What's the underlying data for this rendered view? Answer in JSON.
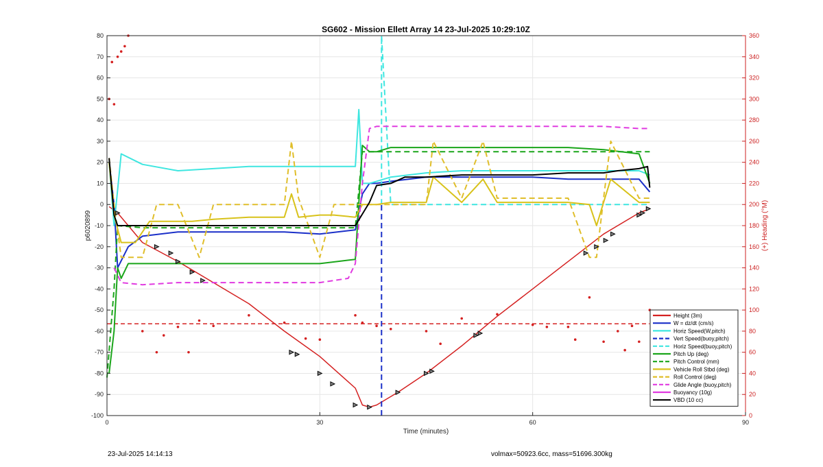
{
  "chart_data": {
    "type": "line",
    "title": "SG602 - Mission Ellett Array 14 23-Jul-2025 10:29:10Z",
    "xlabel": "Time (minutes)",
    "ylabel": "p6020899",
    "y2label": "(+) Heading (°M)",
    "xlim": [
      0,
      90
    ],
    "ylim": [
      -100,
      80
    ],
    "y2lim": [
      0,
      360
    ],
    "x_ticks": [
      "0",
      "30",
      "60",
      "90"
    ],
    "y_ticks": [
      "80",
      "70",
      "60",
      "50",
      "40",
      "30",
      "20",
      "10",
      "0",
      "-10",
      "-20",
      "-30",
      "-40",
      "-50",
      "-60",
      "-70",
      "-80",
      "-90",
      "-100"
    ],
    "y2_ticks": [
      "360",
      "340",
      "320",
      "300",
      "280",
      "260",
      "240",
      "220",
      "200",
      "180",
      "160",
      "140",
      "120",
      "100",
      "80",
      "60",
      "40",
      "20",
      "0"
    ],
    "grid": true,
    "legend_position": "bottom-right",
    "colors": {
      "height": "#d42020",
      "w": "#1a2fc8",
      "horiz": "#3ee6e0",
      "vert_buoy": "#1a2fc8",
      "horiz_buoy": "#3ee6e0",
      "pitch": "#1aa51a",
      "pitch_ctrl": "#1aa51a",
      "roll": "#d8c21a",
      "roll_ctrl": "#e0be2a",
      "glide": "#e03ae0",
      "buoy": "#e03ae0",
      "vbd": "#000000",
      "heading": "#d42020"
    },
    "series": [
      {
        "name": "Height (3m)",
        "style": "solid",
        "color": "#d42020",
        "x": [
          0.3,
          1.5,
          5,
          10,
          15,
          20,
          25,
          30,
          35,
          36,
          37,
          38,
          41,
          45,
          50,
          55,
          60,
          65,
          70,
          75,
          76.5
        ],
        "y": [
          -1,
          -4,
          -18,
          -27,
          -37,
          -47,
          -60,
          -72,
          -87,
          -95,
          -96,
          -95,
          -89,
          -80,
          -67,
          -53,
          -40,
          -27,
          -14,
          -4,
          -2
        ]
      },
      {
        "name": "W = dz/dt (cm/s)",
        "style": "solid",
        "color": "#1a2fc8",
        "x": [
          0.3,
          1,
          1.5,
          3,
          5,
          10,
          15,
          20,
          25,
          30,
          35,
          36,
          37,
          38,
          40,
          45,
          50,
          55,
          60,
          65,
          70,
          75,
          76.5
        ],
        "y": [
          20,
          0,
          -30,
          -20,
          -15,
          -13,
          -13,
          -13,
          -13,
          -14,
          -12,
          5,
          10,
          10,
          11,
          13,
          13,
          13,
          13,
          12,
          12,
          12,
          6
        ]
      },
      {
        "name": "Horiz Speed(W,pitch)",
        "style": "solid",
        "color": "#3ee6e0",
        "x": [
          0.3,
          1,
          2,
          5,
          10,
          15,
          20,
          25,
          30,
          35,
          35.5,
          36,
          37,
          38,
          40,
          45,
          50,
          55,
          60,
          65,
          70,
          75,
          76.5
        ],
        "y": [
          20,
          -10,
          24,
          19,
          16,
          17,
          18,
          18,
          18,
          18,
          45,
          10,
          10,
          11,
          13,
          15,
          16,
          16,
          16,
          16,
          16,
          16,
          14
        ]
      },
      {
        "name": "Vert Speed(buoy,pitch)",
        "style": "dashed",
        "color": "#1a2fc8",
        "x": [
          38.7,
          38.7
        ],
        "y": [
          -100,
          0
        ]
      },
      {
        "name": "Horiz Speed(buoy,pitch)",
        "style": "dashed",
        "color": "#3ee6e0",
        "x": [
          38.7,
          38.7,
          40,
          76.5
        ],
        "y": [
          0,
          80,
          0,
          0
        ]
      },
      {
        "name": "Pitch Up (deg)",
        "style": "solid",
        "color": "#1aa51a",
        "x": [
          0.3,
          1,
          1.5,
          2,
          3,
          5,
          10,
          15,
          20,
          25,
          30,
          35,
          36,
          37,
          38,
          40,
          45,
          50,
          55,
          60,
          65,
          70,
          75,
          76.5
        ],
        "y": [
          -80,
          -60,
          -30,
          -35,
          -28,
          -28,
          -28,
          -28,
          -28,
          -28,
          -28,
          -26,
          28,
          25,
          25,
          27,
          27,
          27,
          27,
          27,
          27,
          26,
          24,
          10
        ]
      },
      {
        "name": "Pitch Control (mm)",
        "style": "dashed",
        "color": "#1aa51a",
        "x": [
          0,
          1,
          1.5,
          5,
          10,
          15,
          20,
          25,
          30,
          35,
          36,
          38,
          40,
          50,
          60,
          70,
          75,
          76.5
        ],
        "y": [
          -82,
          -40,
          -10,
          -11,
          -11,
          -11,
          -11,
          -11,
          -11,
          -11,
          25,
          25,
          25,
          25,
          25,
          25,
          25,
          25
        ]
      },
      {
        "name": "Vehicle Roll Stbd (deg)",
        "style": "solid",
        "color": "#d8c21a",
        "x": [
          0.3,
          1,
          2,
          4,
          6,
          8,
          10,
          12,
          15,
          20,
          25,
          26,
          27,
          30,
          32,
          35,
          36,
          38,
          40,
          45,
          46,
          50,
          53,
          55,
          60,
          65,
          68,
          69,
          70,
          71,
          75,
          76.5
        ],
        "y": [
          20,
          -5,
          -18,
          -18,
          -8,
          -8,
          -8,
          -8,
          -7,
          -6,
          -6,
          5,
          -6,
          -5,
          -5,
          -6,
          0,
          0,
          1,
          1,
          13,
          1,
          12,
          1,
          1,
          1,
          0,
          -10,
          1,
          12,
          1,
          1
        ]
      },
      {
        "name": "Roll Control (deg)",
        "style": "dashed",
        "color": "#e0be2a",
        "x": [
          0.3,
          1,
          2,
          5,
          7,
          10,
          13,
          15,
          20,
          25,
          26,
          27,
          30,
          32,
          35,
          36,
          38,
          40,
          45,
          46,
          50,
          53,
          55,
          60,
          65,
          68,
          69,
          70,
          71,
          75,
          76.5
        ],
        "y": [
          22,
          0,
          -25,
          -25,
          0,
          0,
          -25,
          0,
          0,
          0,
          30,
          3,
          -25,
          0,
          0,
          0,
          0,
          0,
          0,
          30,
          3,
          30,
          3,
          3,
          3,
          -25,
          -25,
          3,
          30,
          3,
          3
        ]
      },
      {
        "name": "Glide Angle (buoy,pitch)",
        "style": "dashed",
        "color": "#e03ae0",
        "x": [
          1,
          2,
          5,
          10,
          15,
          20,
          25,
          30,
          34,
          35,
          36,
          37,
          38,
          40,
          45,
          50,
          55,
          60,
          65,
          70,
          75,
          76.5
        ],
        "y": [
          -30,
          -37,
          -38,
          -37,
          -37,
          -37,
          -37,
          -37,
          -35,
          -28,
          10,
          36,
          37,
          37,
          37,
          37,
          37,
          37,
          37,
          37,
          36,
          36
        ]
      },
      {
        "name": "Buoyancy (10g)",
        "style": "solid",
        "color": "#e03ae0",
        "x": [],
        "y": []
      },
      {
        "name": "VBD (10 cc)",
        "style": "solid",
        "color": "#000000",
        "x": [
          0.3,
          1,
          1.5,
          5,
          10,
          15,
          20,
          25,
          30,
          35,
          37,
          38,
          40,
          42,
          45,
          50,
          55,
          60,
          65,
          70,
          72,
          75,
          76.2,
          76.5
        ],
        "y": [
          22,
          -5,
          -10,
          -10,
          -10,
          -10,
          -10,
          -10,
          -10,
          -10,
          1,
          9,
          10,
          13,
          13,
          14,
          14,
          14,
          15,
          15,
          16,
          17,
          18,
          8
        ]
      }
    ],
    "heading": {
      "name": "Heading (°M)",
      "axis": "right",
      "style": "dots",
      "color": "#d42020",
      "x": [
        0.3,
        0.7,
        1,
        1.5,
        2,
        2.5,
        3,
        5,
        7,
        8,
        10,
        11.5,
        13,
        15,
        20,
        25,
        28,
        30,
        35,
        36,
        38,
        40,
        45,
        47,
        50,
        55,
        60,
        62,
        65,
        66,
        68,
        70,
        72,
        73,
        74,
        75,
        76.5
      ],
      "y": [
        300,
        335,
        295,
        340,
        345,
        350,
        360,
        80,
        60,
        76,
        84,
        60,
        90,
        85,
        95,
        88,
        73,
        72,
        95,
        88,
        85,
        82,
        80,
        68,
        92,
        96,
        86,
        84,
        84,
        72,
        112,
        70,
        80,
        62,
        85,
        70,
        100
      ]
    },
    "heading_reference": {
      "style": "dashed",
      "color": "#d42020",
      "y": 87
    },
    "markers": {
      "x": [
        1.5,
        7,
        9,
        10,
        12,
        13.5,
        26,
        26.8,
        30,
        31.8,
        35,
        37,
        41,
        45,
        45.8,
        52,
        52.6,
        67.5,
        69,
        70.3,
        71.3,
        75,
        75.5,
        76.3
      ],
      "y": [
        -4,
        -20,
        -23,
        -27,
        -32,
        -36,
        -70,
        -71,
        -80,
        -85,
        -95,
        -96,
        -89,
        -80,
        -79,
        -62,
        -61,
        -23,
        -20,
        -17,
        -14,
        -5,
        -4,
        -2
      ]
    }
  },
  "footer": {
    "left": "23-Jul-2025 14:14:13",
    "right": "volmax=50923.6cc, mass=51696.300kg"
  }
}
